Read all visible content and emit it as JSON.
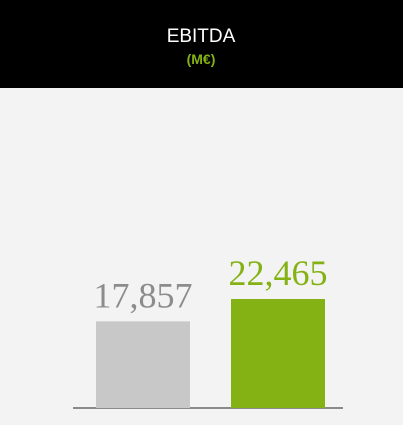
{
  "chart_data": {
    "type": "bar",
    "title": "EBITDA",
    "subtitle": "(M€)",
    "categories": [
      null,
      null
    ],
    "values": [
      17857,
      22465
    ],
    "value_labels": [
      "17,857",
      "22,465"
    ],
    "colors": [
      "#c8c8c8",
      "#84b214"
    ],
    "label_colors": [
      "#8c8c8c",
      "#84b214"
    ]
  }
}
